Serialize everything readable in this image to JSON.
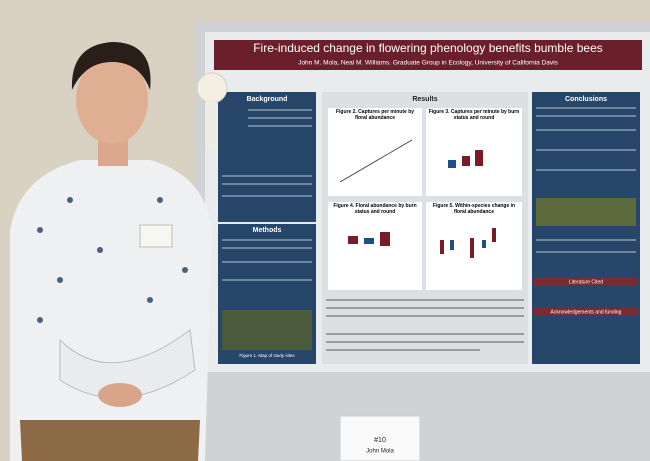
{
  "poster": {
    "title": "Fire-induced change in flowering phenology benefits bumble bees",
    "authors": "John M. Mola, Neal M. Williams. Graduate Group in Ecology, University of California Davis",
    "sections": [
      "Background",
      "Methods",
      "Results",
      "Conclusions",
      "Literature Cited",
      "Acknowledgements and funding"
    ],
    "figures": [
      "Figure 2. Captures per minute by floral abundance",
      "Figure 3. Captures per minute by burn status and round",
      "Figure 4. Floral abundance by burn status and round",
      "Figure 5. Within-species change in floral abundance",
      "Figure 1. Map of study sites"
    ]
  },
  "placard": {
    "number": "#10",
    "name": "John Mola"
  }
}
